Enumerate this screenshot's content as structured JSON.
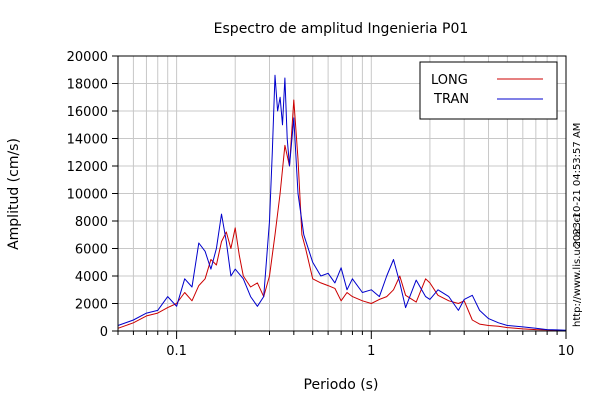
{
  "chart_data": {
    "type": "line",
    "title": "Espectro de amplitud Ingenieria P01",
    "xlabel": "Periodo (s)",
    "ylabel": "Amplitud (cm/s)",
    "xscale": "log",
    "xlim": [
      0.05,
      10
    ],
    "ylim": [
      0,
      20000
    ],
    "x_ticks": [
      0.1,
      1,
      10
    ],
    "x_tick_labels": [
      "0.1",
      "1",
      "10"
    ],
    "y_ticks": [
      0,
      2000,
      4000,
      6000,
      8000,
      10000,
      12000,
      14000,
      16000,
      18000,
      20000
    ],
    "y_tick_labels": [
      "0",
      "2000",
      "4000",
      "6000",
      "8000",
      "10000",
      "12000",
      "14000",
      "16000",
      "18000",
      "20000"
    ],
    "grid": true,
    "legend_position": "top-right",
    "timestamp_text": "2023-10-21 04:53:57 AM",
    "source_text": "http://www.lis.ucr.ac.cr",
    "series": [
      {
        "name": "LONG",
        "color": "#cc0000",
        "x": [
          0.05,
          0.06,
          0.07,
          0.08,
          0.09,
          0.1,
          0.11,
          0.12,
          0.13,
          0.14,
          0.15,
          0.16,
          0.17,
          0.18,
          0.19,
          0.2,
          0.21,
          0.22,
          0.24,
          0.26,
          0.28,
          0.3,
          0.32,
          0.34,
          0.36,
          0.38,
          0.4,
          0.42,
          0.44,
          0.46,
          0.5,
          0.55,
          0.6,
          0.65,
          0.7,
          0.75,
          0.8,
          0.9,
          1.0,
          1.1,
          1.2,
          1.3,
          1.4,
          1.5,
          1.7,
          1.9,
          2.0,
          2.2,
          2.5,
          2.8,
          3.0,
          3.3,
          3.6,
          4.0,
          4.5,
          5.0,
          6.0,
          7.0,
          8.0,
          9.0,
          10.0
        ],
        "y": [
          200,
          600,
          1100,
          1300,
          1700,
          2000,
          2800,
          2200,
          3300,
          3800,
          5200,
          4800,
          6500,
          7200,
          6000,
          7500,
          5500,
          4000,
          3200,
          3500,
          2500,
          4000,
          7000,
          10000,
          13500,
          12000,
          16800,
          12500,
          7000,
          6000,
          3800,
          3500,
          3300,
          3100,
          2200,
          2800,
          2500,
          2200,
          2000,
          2300,
          2500,
          3000,
          4000,
          2600,
          2100,
          3800,
          3500,
          2600,
          2200,
          2000,
          2200,
          800,
          500,
          400,
          350,
          250,
          150,
          100,
          80,
          50,
          30
        ]
      },
      {
        "name": "TRAN",
        "color": "#0000cc",
        "x": [
          0.05,
          0.06,
          0.07,
          0.08,
          0.09,
          0.1,
          0.11,
          0.12,
          0.13,
          0.14,
          0.15,
          0.16,
          0.17,
          0.18,
          0.19,
          0.2,
          0.22,
          0.24,
          0.26,
          0.28,
          0.3,
          0.31,
          0.32,
          0.33,
          0.34,
          0.35,
          0.36,
          0.37,
          0.38,
          0.4,
          0.42,
          0.45,
          0.5,
          0.55,
          0.6,
          0.65,
          0.7,
          0.75,
          0.8,
          0.9,
          1.0,
          1.1,
          1.2,
          1.3,
          1.4,
          1.5,
          1.7,
          1.9,
          2.0,
          2.2,
          2.5,
          2.8,
          3.0,
          3.3,
          3.6,
          4.0,
          4.5,
          5.0,
          6.0,
          7.0,
          8.0,
          9.0,
          10.0
        ],
        "y": [
          400,
          800,
          1300,
          1500,
          2500,
          1800,
          3800,
          3200,
          6400,
          5800,
          4500,
          6000,
          8500,
          6500,
          4000,
          4500,
          3800,
          2500,
          1800,
          2500,
          8000,
          13000,
          18600,
          16000,
          17000,
          15000,
          18400,
          14000,
          12000,
          15500,
          10000,
          7000,
          5000,
          4000,
          4200,
          3500,
          4600,
          3000,
          3800,
          2800,
          3000,
          2500,
          4000,
          5200,
          3500,
          1700,
          3700,
          2500,
          2300,
          3000,
          2500,
          1500,
          2300,
          2600,
          1500,
          900,
          600,
          400,
          300,
          200,
          100,
          80,
          50
        ]
      }
    ]
  }
}
